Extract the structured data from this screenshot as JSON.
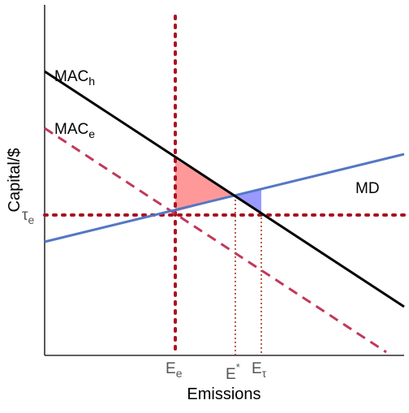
{
  "figure": {
    "xlabel": "Emissions",
    "ylabel": "Capital/$",
    "x_ticks": [
      {
        "id": "E_e",
        "base": "E",
        "sub": "e"
      },
      {
        "id": "E_star",
        "base": "E",
        "sup": "*"
      },
      {
        "id": "E_tau",
        "base": "E",
        "sub": "τ"
      }
    ],
    "y_ticks": [
      {
        "id": "tau_e",
        "base": "τ",
        "sub": "e"
      }
    ],
    "curves": [
      {
        "id": "MAC_h",
        "base": "MAC",
        "sub": "h",
        "style": "solid",
        "color": "#000000"
      },
      {
        "id": "MAC_e",
        "base": "MAC",
        "sub": "e",
        "style": "dashed",
        "color": "#c0395a"
      },
      {
        "id": "MD",
        "base": "MD",
        "style": "solid",
        "color": "#5577c4"
      }
    ],
    "guide_lines": [
      {
        "id": "emissions-standard-line",
        "at": "E_e",
        "orientation": "vertical",
        "color": "#aa1122"
      },
      {
        "id": "tax-level-line",
        "at": "tau_e",
        "orientation": "horizontal",
        "color": "#aa1122"
      },
      {
        "id": "e-star-drop-line",
        "at": "E_star",
        "orientation": "vertical",
        "color": "#aa1122"
      },
      {
        "id": "e-tau-drop-line",
        "at": "E_tau",
        "orientation": "vertical",
        "color": "#aa1122"
      }
    ],
    "regions": [
      {
        "id": "loss-triangle-standard",
        "color": "#ff9999"
      },
      {
        "id": "loss-triangle-tax",
        "color": "#9999ff"
      }
    ]
  }
}
